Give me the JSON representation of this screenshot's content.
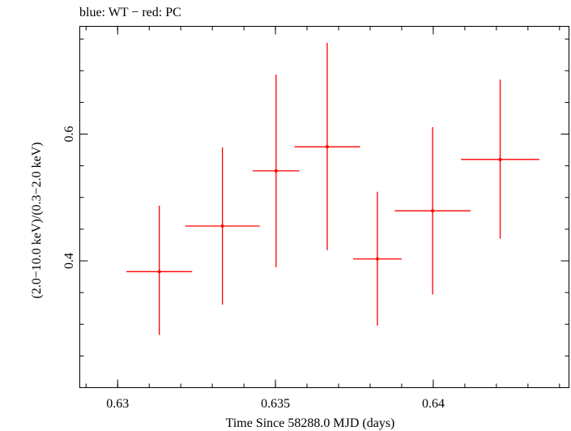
{
  "chart_data": {
    "type": "scatter",
    "title": "blue: WT − red: PC",
    "xlabel": "Time Since 58288.0 MJD (days)",
    "ylabel": "(2.0−10.0 keV)/(0.3−2.0 keV)",
    "xlim": [
      0.6288,
      0.6443
    ],
    "ylim": [
      0.2,
      0.77
    ],
    "x_ticks": [
      0.63,
      0.635,
      0.64
    ],
    "x_tick_labels": [
      "0.63",
      "0.635",
      "0.64"
    ],
    "y_ticks": [
      0.4,
      0.6
    ],
    "y_tick_labels": [
      "0.4",
      "0.6"
    ],
    "grid": false,
    "series": [
      {
        "color": "#ff0000",
        "points": [
          {
            "x": 0.63132,
            "y": 0.383,
            "xerr": 0.00104,
            "yerr_low": 0.1,
            "yerr_high": 0.104
          },
          {
            "x": 0.63332,
            "y": 0.455,
            "xerr": 0.00118,
            "yerr_low": 0.124,
            "yerr_high": 0.124
          },
          {
            "x": 0.63502,
            "y": 0.542,
            "xerr": 0.00074,
            "yerr_low": 0.152,
            "yerr_high": 0.152
          },
          {
            "x": 0.63664,
            "y": 0.58,
            "xerr": 0.00104,
            "yerr_low": 0.163,
            "yerr_high": 0.164
          },
          {
            "x": 0.63823,
            "y": 0.403,
            "xerr": 0.00077,
            "yerr_low": 0.105,
            "yerr_high": 0.106
          },
          {
            "x": 0.63998,
            "y": 0.479,
            "xerr": 0.0012,
            "yerr_low": 0.132,
            "yerr_high": 0.132
          },
          {
            "x": 0.64212,
            "y": 0.56,
            "xerr": 0.00124,
            "yerr_low": 0.125,
            "yerr_high": 0.126
          }
        ]
      }
    ]
  }
}
